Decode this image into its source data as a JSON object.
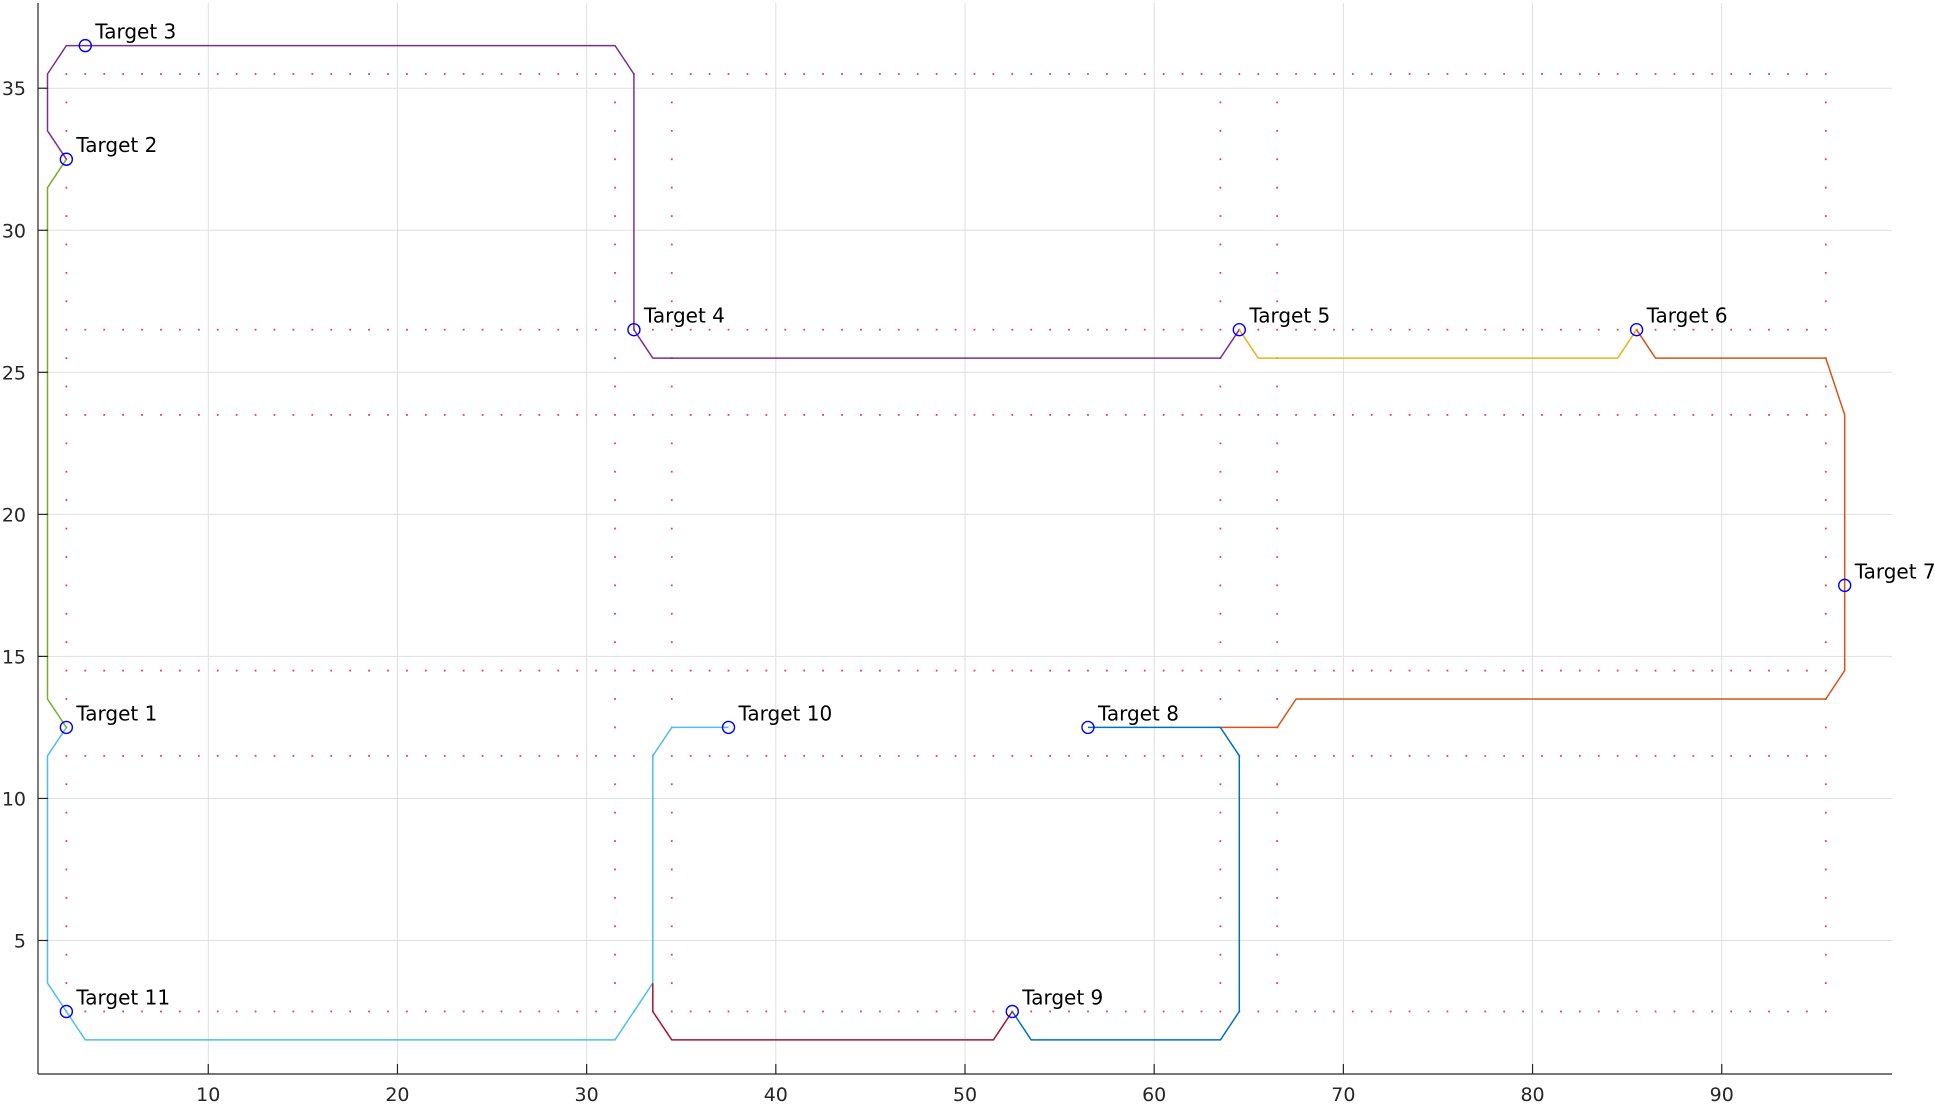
{
  "chart_data": {
    "type": "line",
    "title": "",
    "xlabel": "",
    "ylabel": "",
    "xlim": [
      1,
      99
    ],
    "ylim": [
      0.3,
      38
    ],
    "grid": true,
    "x_ticks": [
      10,
      20,
      30,
      40,
      50,
      60,
      70,
      80,
      90
    ],
    "y_ticks": [
      5,
      10,
      15,
      20,
      25,
      30,
      35
    ],
    "path_series": [
      {
        "color": "#4dbeee",
        "points": [
          [
            2.5,
            12.5
          ],
          [
            1.5,
            11.5
          ],
          [
            1.5,
            3.5
          ],
          [
            2.5,
            2.5
          ],
          [
            3.5,
            1.5
          ],
          [
            31.5,
            1.5
          ],
          [
            33.5,
            3.5
          ]
        ]
      },
      {
        "color": "#77ac30",
        "points": [
          [
            2.5,
            12.5
          ],
          [
            1.5,
            13.5
          ],
          [
            1.5,
            31.5
          ],
          [
            2.5,
            32.5
          ]
        ]
      },
      {
        "color": "#7e2f8e",
        "points": [
          [
            2.5,
            32.5
          ],
          [
            1.5,
            33.5
          ],
          [
            1.5,
            35.5
          ],
          [
            2.5,
            36.5
          ],
          [
            3.5,
            36.5
          ],
          [
            31.5,
            36.5
          ],
          [
            32.5,
            35.5
          ],
          [
            32.5,
            26.5
          ],
          [
            33.5,
            25.5
          ],
          [
            63.5,
            25.5
          ],
          [
            64.5,
            26.5
          ]
        ]
      },
      {
        "color": "#edb120",
        "points": [
          [
            64.5,
            26.5
          ],
          [
            65.5,
            25.5
          ],
          [
            84.5,
            25.5
          ],
          [
            85.5,
            26.5
          ]
        ]
      },
      {
        "color": "#d95319",
        "points": [
          [
            85.5,
            26.5
          ],
          [
            86.5,
            25.5
          ],
          [
            95.5,
            25.5
          ],
          [
            96.5,
            23.5
          ],
          [
            96.5,
            14.5
          ],
          [
            95.5,
            13.5
          ],
          [
            67.5,
            13.5
          ],
          [
            66.5,
            12.5
          ],
          [
            64.5,
            12.5
          ],
          [
            63.5,
            12.5
          ]
        ]
      },
      {
        "color": "#0072bd",
        "points": [
          [
            56.5,
            12.5
          ],
          [
            63.5,
            12.5
          ],
          [
            64.5,
            11.5
          ],
          [
            64.5,
            2.5
          ],
          [
            63.5,
            1.5
          ],
          [
            53.5,
            1.5
          ],
          [
            52.5,
            2.5
          ]
        ]
      },
      {
        "color": "#a2142f",
        "points": [
          [
            52.5,
            2.5
          ],
          [
            51.5,
            1.5
          ],
          [
            34.5,
            1.5
          ],
          [
            33.5,
            2.5
          ],
          [
            33.5,
            3.5
          ]
        ]
      },
      {
        "color": "#4dbeee",
        "points": [
          [
            33.5,
            3.5
          ],
          [
            33.5,
            11.5
          ],
          [
            34.5,
            12.5
          ],
          [
            37.5,
            12.5
          ]
        ]
      }
    ],
    "targets": [
      {
        "label": "Target 1",
        "x": 2.5,
        "y": 12.5
      },
      {
        "label": "Target 2",
        "x": 2.5,
        "y": 32.5
      },
      {
        "label": "Target 3",
        "x": 3.5,
        "y": 36.5
      },
      {
        "label": "Target 4",
        "x": 32.5,
        "y": 26.5
      },
      {
        "label": "Target 5",
        "x": 64.5,
        "y": 26.5
      },
      {
        "label": "Target 6",
        "x": 85.5,
        "y": 26.5
      },
      {
        "label": "Target 7",
        "x": 96.5,
        "y": 17.5
      },
      {
        "label": "Target 8",
        "x": 56.5,
        "y": 12.5
      },
      {
        "label": "Target 9",
        "x": 52.5,
        "y": 2.5
      },
      {
        "label": "Target 10",
        "x": 37.5,
        "y": 12.5
      },
      {
        "label": "Target 11",
        "x": 2.5,
        "y": 2.5
      }
    ],
    "obstacle_grid": {
      "color": "#ff3355",
      "rows_y": [
        2.5,
        11.5,
        14.5,
        23.5,
        26.5,
        35.5
      ],
      "cols_x": [
        2.5,
        31.5,
        34.5,
        63.5,
        66.5,
        95.5
      ],
      "spacing": 1
    },
    "target_marker_color": "#0000ff"
  }
}
